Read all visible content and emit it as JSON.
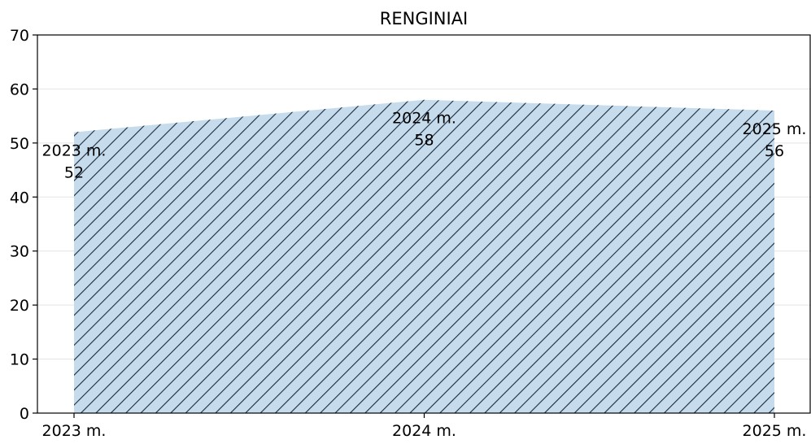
{
  "chart_data": {
    "type": "area",
    "title": "RENGINIAI",
    "xlabel": "",
    "ylabel": "",
    "categories": [
      "2023 m.",
      "2024 m.",
      "2025 m."
    ],
    "values": [
      52,
      58,
      56
    ],
    "data_labels": [
      [
        "2023 m.",
        "52"
      ],
      [
        "2024 m.",
        "58"
      ],
      [
        "2025 m.",
        "56"
      ]
    ],
    "ylim": [
      0,
      70
    ],
    "yticks": [
      "0",
      "10",
      "20",
      "30",
      "40",
      "50",
      "60",
      "70"
    ],
    "grid": "horizontal",
    "fill_color": "#c6dcec",
    "hatch_color": "#1a2a40",
    "hatch": "diagonal"
  }
}
